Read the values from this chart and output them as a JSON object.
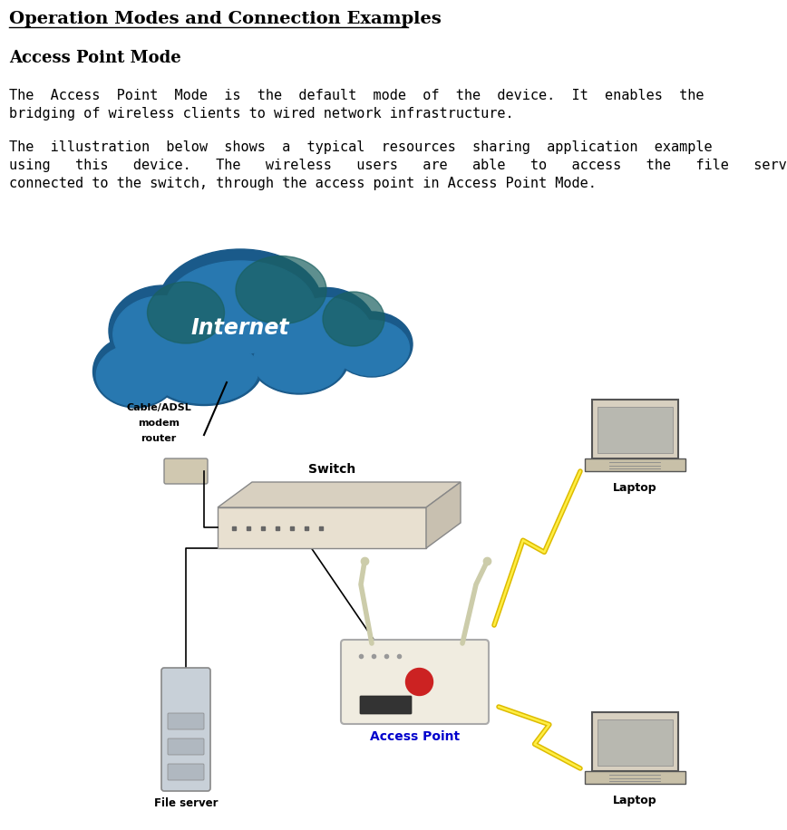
{
  "title": "Operation Modes and Connection Examples",
  "section_title": "Access Point Mode",
  "paragraph1_line1": "The  Access  Point  Mode  is  the  default  mode  of  the  device.  It  enables  the",
  "paragraph1_line2": "bridging of wireless clients to wired network infrastructure.",
  "paragraph2_line1": "The  illustration  below  shows  a  typical  resources  sharing  application  example",
  "paragraph2_line2": "using   this   device.   The   wireless   users   are   able   to   access   the   file   server",
  "paragraph2_line3": "connected to the switch, through the access point in Access Point Mode.",
  "bg_color": "#ffffff",
  "text_color": "#000000",
  "title_fontsize": 14,
  "section_fontsize": 13,
  "body_fontsize": 11
}
